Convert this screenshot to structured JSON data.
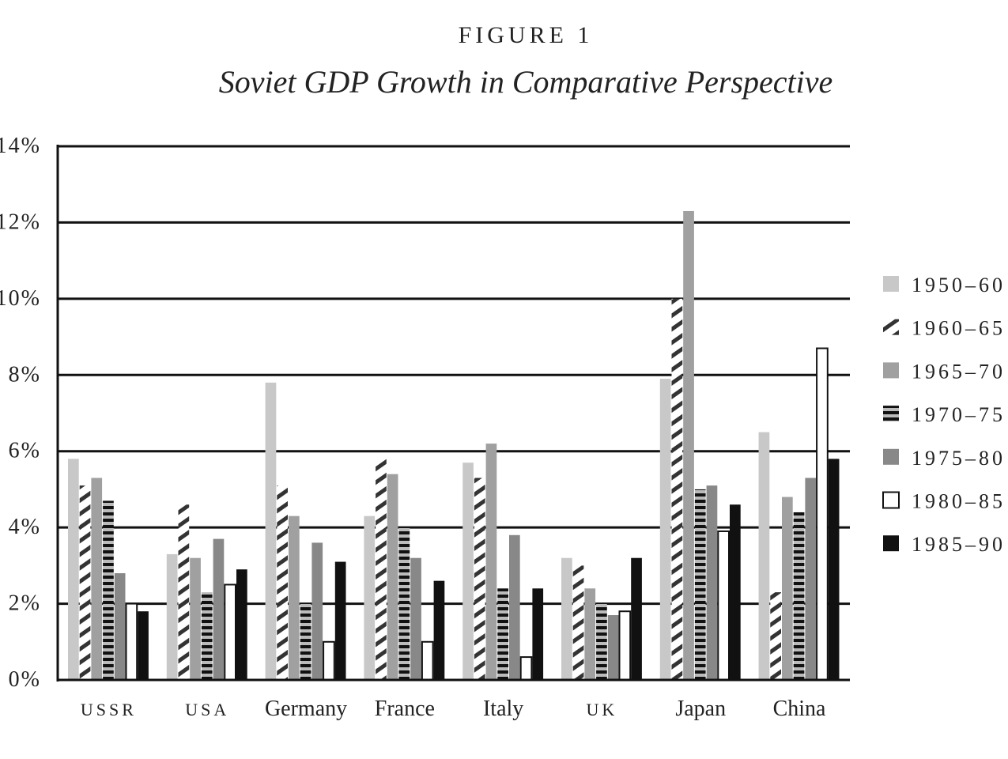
{
  "chart_data": {
    "type": "bar",
    "label": "FIGURE 1",
    "title": "Soviet GDP Growth in Comparative Perspective",
    "xlabel": "",
    "ylabel": "",
    "ylim": [
      0,
      14
    ],
    "yticks": [
      "0%",
      "2%",
      "4%",
      "6%",
      "8%",
      "10%",
      "12%",
      "14%"
    ],
    "grid": true,
    "legend_position": "right",
    "categories": [
      "USSR",
      "USA",
      "Germany",
      "France",
      "Italy",
      "UK",
      "Japan",
      "China"
    ],
    "series": [
      {
        "name": "1950–60",
        "fill": "#c8c8c8",
        "pattern": "solid",
        "values": [
          5.8,
          3.3,
          7.8,
          4.3,
          5.7,
          3.2,
          7.9,
          6.5
        ]
      },
      {
        "name": "1960–65",
        "fill": "#ffffff",
        "pattern": "diagonal",
        "values": [
          5.1,
          4.6,
          5.1,
          5.8,
          5.3,
          3.0,
          10.0,
          2.3
        ]
      },
      {
        "name": "1965–70",
        "fill": "#a0a0a0",
        "pattern": "solid",
        "values": [
          5.3,
          3.2,
          4.3,
          5.4,
          6.2,
          2.4,
          12.3,
          4.8
        ]
      },
      {
        "name": "1970–75",
        "fill": "#ffffff",
        "pattern": "horizontal",
        "values": [
          4.7,
          2.3,
          2.0,
          4.0,
          2.4,
          2.0,
          5.0,
          4.4
        ]
      },
      {
        "name": "1975–80",
        "fill": "#888888",
        "pattern": "solid",
        "values": [
          2.8,
          3.7,
          3.6,
          3.2,
          3.8,
          1.7,
          5.1,
          5.3
        ]
      },
      {
        "name": "1980–85",
        "fill": "#ffffff",
        "pattern": "outline",
        "values": [
          2.0,
          2.5,
          1.0,
          1.0,
          0.6,
          1.8,
          3.9,
          8.7
        ]
      },
      {
        "name": "1985–90",
        "fill": "#111111",
        "pattern": "solid",
        "values": [
          1.8,
          2.9,
          3.1,
          2.6,
          2.4,
          3.2,
          4.6,
          5.8
        ]
      }
    ]
  }
}
